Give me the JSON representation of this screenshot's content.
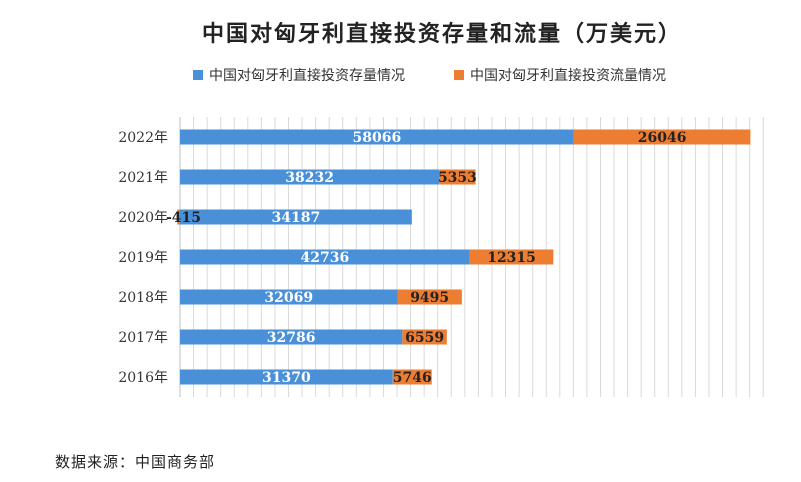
{
  "chart_data": {
    "type": "bar",
    "orientation": "horizontal",
    "stacked": true,
    "title": "中国对匈牙利直接投资存量和流量（万美元）",
    "categories": [
      "2022年",
      "2021年",
      "2020年",
      "2019年",
      "2018年",
      "2017年",
      "2016年"
    ],
    "series": [
      {
        "name": "中国对匈牙利直接投资存量情况",
        "color": "#4a90d9",
        "values": [
          58066,
          38232,
          34187,
          42736,
          32069,
          32786,
          31370
        ]
      },
      {
        "name": "中国对匈牙利直接投资流量情况",
        "color": "#ed7d31",
        "values": [
          26046,
          5353,
          -415,
          12315,
          9495,
          6559,
          5746
        ]
      }
    ],
    "xlim": [
      0,
      87000
    ],
    "grid": true,
    "legend": "top"
  },
  "source": "数据来源：中国商务部"
}
